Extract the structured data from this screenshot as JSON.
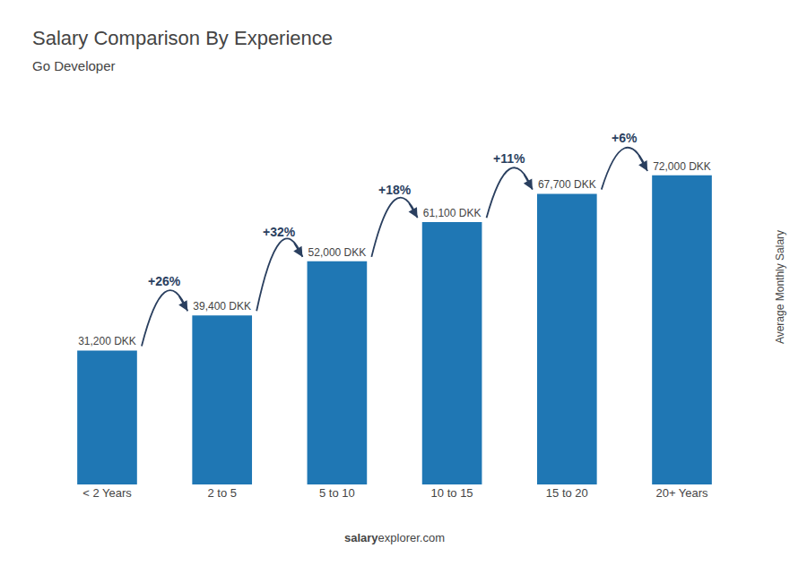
{
  "chart_data": {
    "type": "bar",
    "title": "Salary Comparison By Experience",
    "subtitle": "Go Developer",
    "categories": [
      "< 2 Years",
      "2 to 5",
      "5 to 10",
      "10 to 15",
      "15 to 20",
      "20+ Years"
    ],
    "values": [
      31200,
      39400,
      52000,
      61100,
      67700,
      72000
    ],
    "value_labels": [
      "31,200 DKK",
      "39,400 DKK",
      "52,000 DKK",
      "61,100 DKK",
      "67,700 DKK",
      "72,000 DKK"
    ],
    "data_labels": true,
    "ylabel": "Average Monthly Salary",
    "ylim": [
      0,
      92000
    ],
    "tick_labels": "x",
    "grid": false,
    "annotations": [
      {
        "text": "+26%",
        "between": [
          "< 2 Years",
          "2 to 5"
        ]
      },
      {
        "text": "+32%",
        "between": [
          "2 to 5",
          "5 to 10"
        ]
      },
      {
        "text": "+18%",
        "between": [
          "5 to 10",
          "10 to 15"
        ]
      },
      {
        "text": "+11%",
        "between": [
          "10 to 15",
          "15 to 20"
        ]
      },
      {
        "text": "+6%",
        "between": [
          "15 to 20",
          "20+ Years"
        ]
      }
    ],
    "footer": [
      "salary",
      "explorer.com"
    ]
  }
}
